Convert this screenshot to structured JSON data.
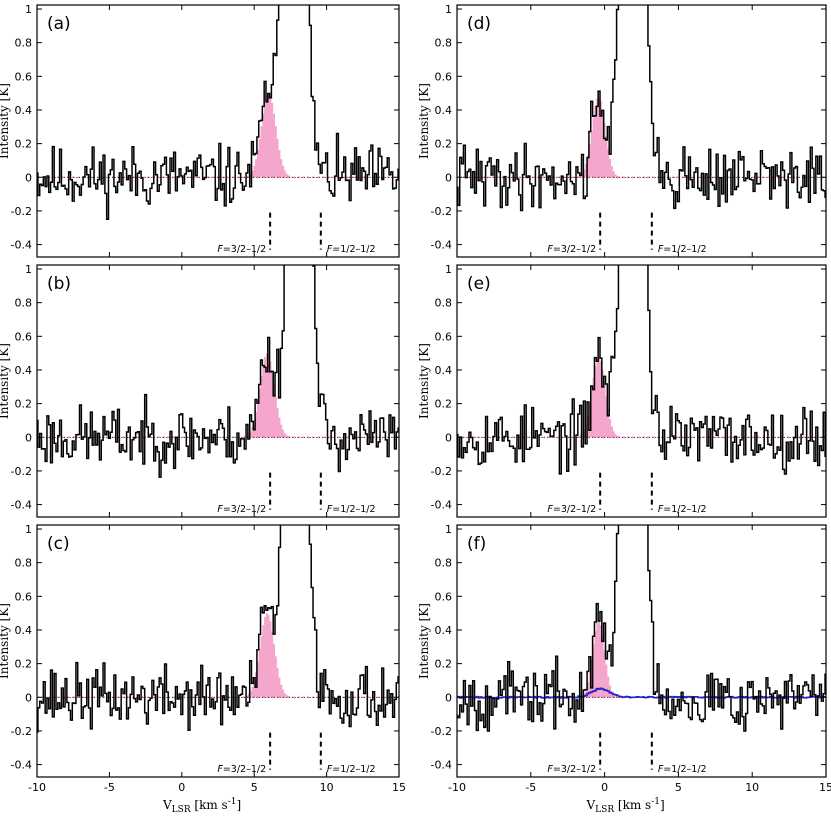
{
  "colors": {
    "model_fill": "#f4a6cc",
    "model_line": "#e0509a",
    "blue_model": "#2222cc",
    "observed": "#000000"
  },
  "axes": {
    "y_label": "Intensity [K]",
    "x_label_main": "V",
    "x_label_sub": "LSR",
    "x_label_unit": " [km s",
    "x_label_exp": "-1",
    "x_label_close": "]"
  },
  "chart_data": [
    {
      "panel": "(a)",
      "type": "line",
      "xlim": [
        -10,
        15
      ],
      "ylim": [
        -0.45,
        1.0
      ],
      "xticks": [
        "-10",
        "-5",
        "0",
        "5",
        "10",
        "15"
      ],
      "yticks": [
        "-0.4",
        "-0.2",
        "0",
        "0.2",
        "0.4",
        "0.6",
        "0.8",
        "1"
      ],
      "hfs": [
        {
          "label_pre": "F",
          "label_post": "=3/2–1/2",
          "v": 6.1
        },
        {
          "label_pre": "F",
          "label_post": "=1/2–1/2",
          "v": 9.6
        }
      ],
      "model_peak": {
        "v": 6.0,
        "amp": 0.5,
        "sigma": 0.5
      },
      "main_line": {
        "v": 7.8,
        "amp": 4.0,
        "sigma": 0.6
      },
      "seed": 11,
      "noise": 0.13
    },
    {
      "panel": "(b)",
      "type": "line",
      "xlim": [
        -10,
        15
      ],
      "ylim": [
        -0.45,
        1.0
      ],
      "xticks": [
        "-10",
        "-5",
        "0",
        "5",
        "10",
        "15"
      ],
      "yticks": [
        "-0.4",
        "-0.2",
        "0",
        "0.2",
        "0.4",
        "0.6",
        "0.8",
        "1"
      ],
      "hfs": [
        {
          "label_pre": "F",
          "label_post": "=3/2–1/2",
          "v": 6.1
        },
        {
          "label_pre": "F",
          "label_post": "=1/2–1/2",
          "v": 9.6
        }
      ],
      "model_peak": {
        "v": 5.9,
        "amp": 0.5,
        "sigma": 0.5
      },
      "main_line": {
        "v": 8.1,
        "amp": 4.0,
        "sigma": 0.6
      },
      "seed": 23,
      "noise": 0.13
    },
    {
      "panel": "(c)",
      "type": "line",
      "xlim": [
        -10,
        15
      ],
      "ylim": [
        -0.45,
        1.0
      ],
      "xticks": [
        "-10",
        "-5",
        "0",
        "5",
        "10",
        "15"
      ],
      "yticks": [
        "-0.4",
        "-0.2",
        "0",
        "0.2",
        "0.4",
        "0.6",
        "0.8",
        "1"
      ],
      "hfs": [
        {
          "label_pre": "F",
          "label_post": "=3/2–1/2",
          "v": 6.1
        },
        {
          "label_pre": "F",
          "label_post": "=1/2–1/2",
          "v": 9.6
        }
      ],
      "model_peak": {
        "v": 5.9,
        "amp": 0.5,
        "sigma": 0.5
      },
      "main_line": {
        "v": 7.9,
        "amp": 4.0,
        "sigma": 0.6
      },
      "seed": 37,
      "noise": 0.13
    },
    {
      "panel": "(d)",
      "type": "line",
      "xlim": [
        -10,
        15
      ],
      "ylim": [
        -0.45,
        1.0
      ],
      "xticks": [
        "-10",
        "-5",
        "0",
        "5",
        "10",
        "15"
      ],
      "yticks": [
        "-0.4",
        "-0.2",
        "0",
        "0.2",
        "0.4",
        "0.6",
        "0.8",
        "1"
      ],
      "hfs": [
        {
          "label_pre": "F",
          "label_post": "=3/2–1/2",
          "v": -0.3
        },
        {
          "label_pre": "F",
          "label_post": "=1/2–1/2",
          "v": 3.2
        }
      ],
      "model_peak": {
        "v": -0.4,
        "amp": 0.48,
        "sigma": 0.45
      },
      "main_line": {
        "v": 1.9,
        "amp": 4.0,
        "sigma": 0.6
      },
      "seed": 41,
      "noise": 0.13
    },
    {
      "panel": "(e)",
      "type": "line",
      "xlim": [
        -10,
        15
      ],
      "ylim": [
        -0.45,
        1.0
      ],
      "xticks": [
        "-10",
        "-5",
        "0",
        "5",
        "10",
        "15"
      ],
      "yticks": [
        "-0.4",
        "-0.2",
        "0",
        "0.2",
        "0.4",
        "0.6",
        "0.8",
        "1"
      ],
      "hfs": [
        {
          "label_pre": "F",
          "label_post": "=3/2–1/2",
          "v": -0.3
        },
        {
          "label_pre": "F",
          "label_post": "=1/2–1/2",
          "v": 3.2
        }
      ],
      "model_peak": {
        "v": -0.4,
        "amp": 0.48,
        "sigma": 0.45
      },
      "main_line": {
        "v": 1.9,
        "amp": 4.0,
        "sigma": 0.6
      },
      "seed": 53,
      "noise": 0.13
    },
    {
      "panel": "(f)",
      "type": "line",
      "xlim": [
        -10,
        15
      ],
      "ylim": [
        -0.45,
        1.0
      ],
      "xticks": [
        "-10",
        "-5",
        "0",
        "5",
        "10",
        "15"
      ],
      "yticks": [
        "-0.4",
        "-0.2",
        "0",
        "0.2",
        "0.4",
        "0.6",
        "0.8",
        "1"
      ],
      "hfs": [
        {
          "label_pre": "F",
          "label_post": "=3/2–1/2",
          "v": -0.3
        },
        {
          "label_pre": "F",
          "label_post": "=1/2–1/2",
          "v": 3.2
        }
      ],
      "model_peak": {
        "v": -0.4,
        "amp": 0.46,
        "sigma": 0.4
      },
      "blue_peak": {
        "v": -0.3,
        "amp": 0.05,
        "sigma": 0.6
      },
      "main_line": {
        "v": 1.9,
        "amp": 4.0,
        "sigma": 0.6
      },
      "seed": 67,
      "noise": 0.13
    }
  ]
}
